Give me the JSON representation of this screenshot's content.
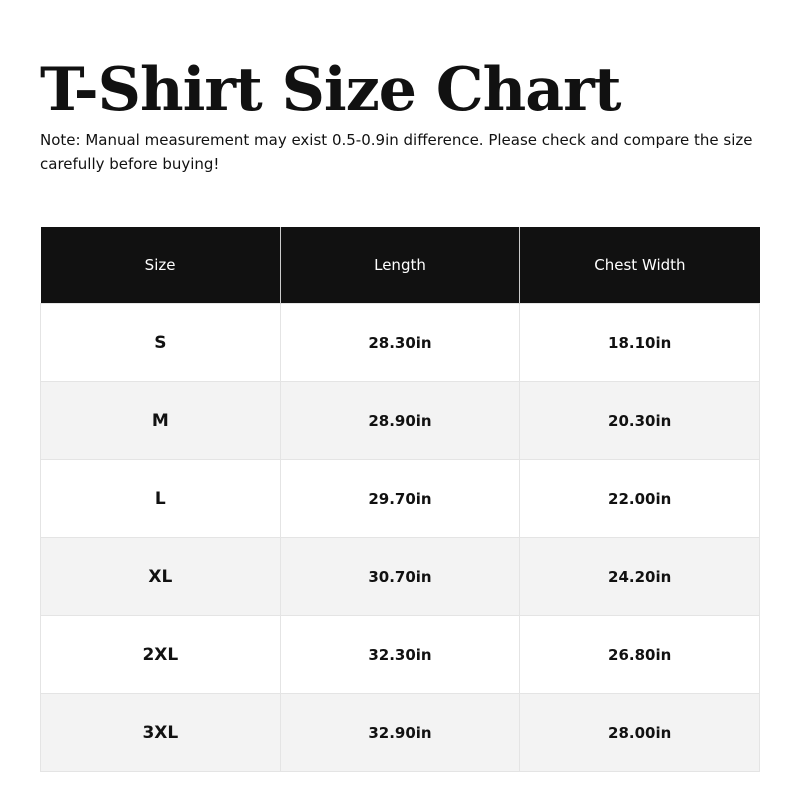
{
  "title": "T-Shirt Size Chart",
  "note": "Note: Manual measurement may exist 0.5-0.9in difference. Please check and compare the size carefully before buying!",
  "table": {
    "headers": [
      "Size",
      "Length",
      "Chest Width"
    ],
    "rows": [
      [
        "S",
        "28.30in",
        "18.10in"
      ],
      [
        "M",
        "28.90in",
        "20.30in"
      ],
      [
        "L",
        "29.70in",
        "22.00in"
      ],
      [
        "XL",
        "30.70in",
        "24.20in"
      ],
      [
        "2XL",
        "32.30in",
        "26.80in"
      ],
      [
        "3XL",
        "32.90in",
        "28.00in"
      ]
    ]
  },
  "colors": {
    "header_bg": "#111111",
    "alt_row_bg": "#f3f3f3"
  }
}
